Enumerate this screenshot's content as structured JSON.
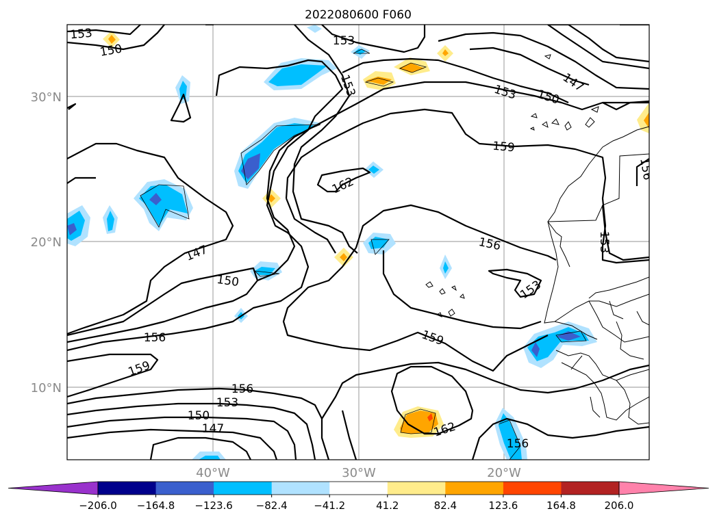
{
  "title": "2022080600 F060",
  "lat_labels": [
    "30°N",
    "20°N",
    "10°N"
  ],
  "lon_labels": [
    "40°W",
    "30°W",
    "20°W"
  ],
  "contour_labels": [
    "153",
    "150",
    "153",
    "147",
    "153",
    "150",
    "159",
    "156",
    "162",
    "156",
    "147",
    "150",
    "153",
    "156",
    "159",
    "159",
    "156",
    "153",
    "150",
    "147",
    "162",
    "156"
  ],
  "colorbar": {
    "ticks": [
      "−206.0",
      "−164.8",
      "−123.6",
      "−82.4",
      "−41.2",
      "41.2",
      "82.4",
      "123.6",
      "164.8",
      "206.0"
    ],
    "colors": [
      "#9932cc",
      "#00008b",
      "#3a5fcd",
      "#00bfff",
      "#b0e2ff",
      "#ffffff",
      "#ffec8b",
      "#ffa500",
      "#ff4500",
      "#b22222",
      "#ff82ab"
    ]
  }
}
